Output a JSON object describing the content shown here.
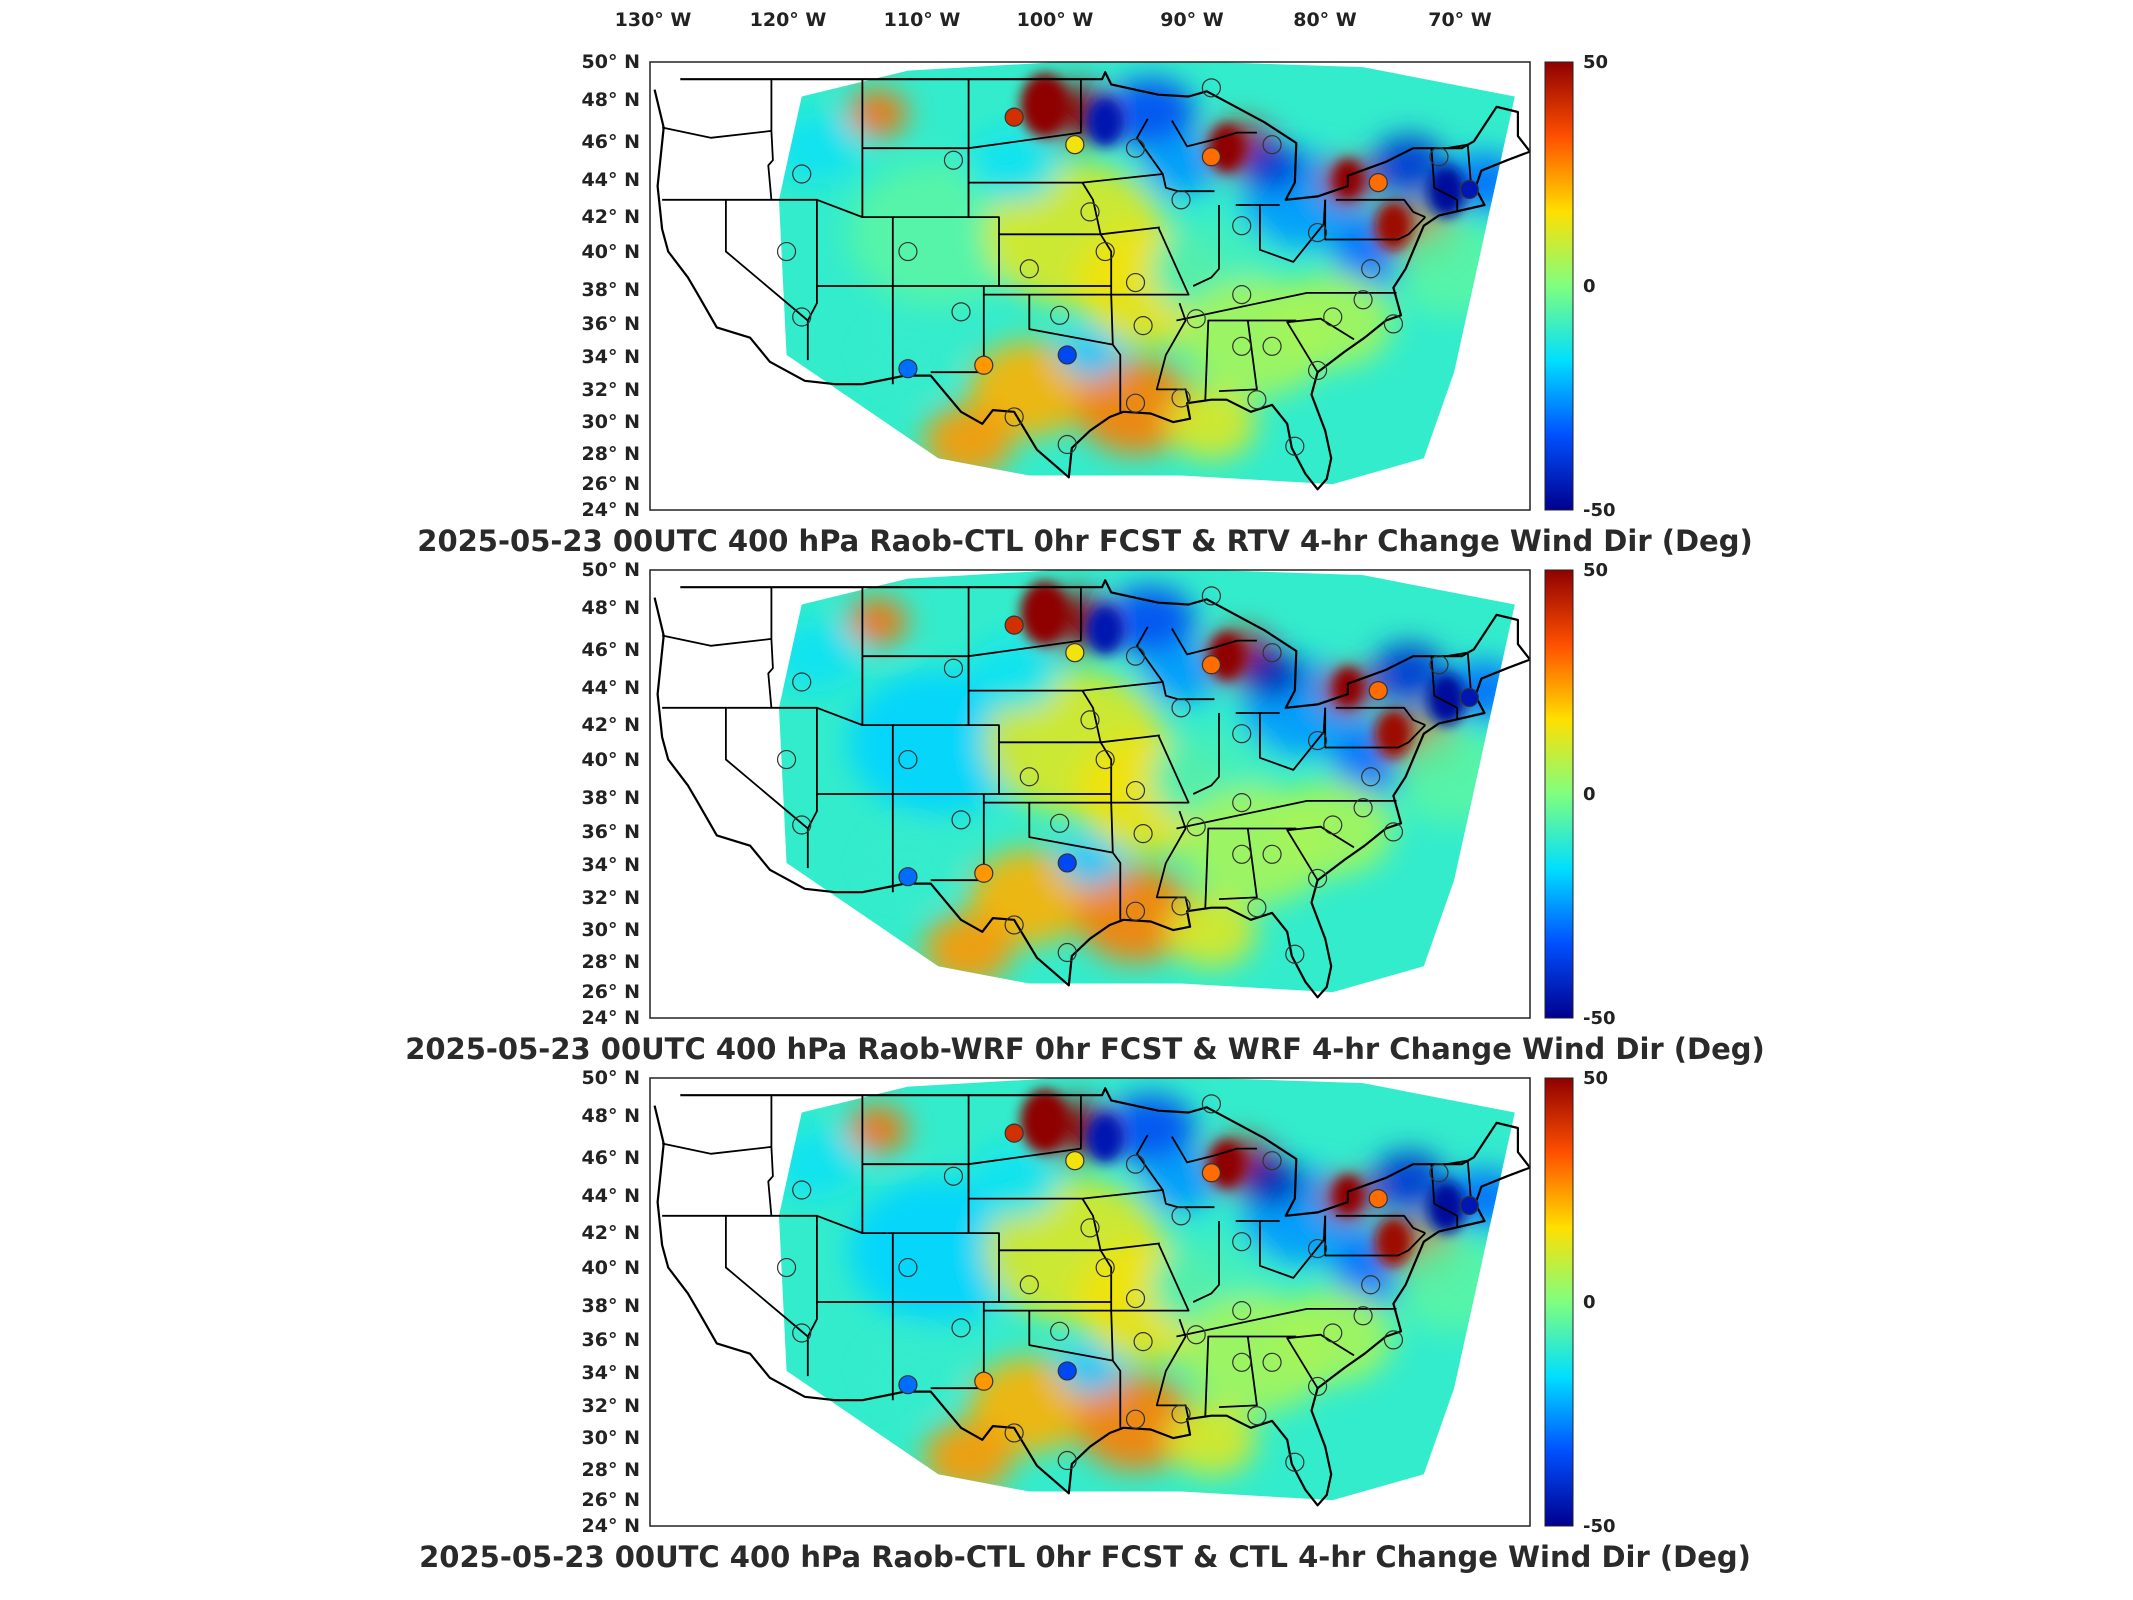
{
  "figure": {
    "lon_labels": [
      "130° W",
      "120° W",
      "110° W",
      "100° W",
      "90° W",
      "80° W",
      "70° W"
    ],
    "lat_labels": [
      "50° N",
      "48° N",
      "46° N",
      "44° N",
      "42° N",
      "40° N",
      "38° N",
      "36° N",
      "34° N",
      "32° N",
      "30° N",
      "28° N",
      "26° N",
      "24° N"
    ],
    "colorbar": {
      "max_label": "50",
      "mid_label": "0",
      "min_label": "-50",
      "colors": [
        "#00008f",
        "#0050ff",
        "#00dfff",
        "#7fff7f",
        "#ffdf00",
        "#ff5000",
        "#8f0000"
      ]
    }
  },
  "panels": [
    {
      "title": "2025-05-23 00UTC 400 hPa Raob-CTL 0hr FCST & RTV 4-hr Change Wind Dir (Deg)"
    },
    {
      "title": "2025-05-23 00UTC 400 hPa Raob-WRF 0hr FCST & WRF 4-hr Change Wind Dir (Deg)"
    },
    {
      "title": "2025-05-23 00UTC 400 hPa Raob-CTL 0hr FCST & CTL 4-hr Change Wind Dir (Deg)"
    }
  ],
  "stations": [
    {
      "lon": -105,
      "lat": 44.3,
      "v": 0
    },
    {
      "lon": -115,
      "lat": 43.5,
      "v": 0
    },
    {
      "lon": -101,
      "lat": 46.8,
      "v": 40
    },
    {
      "lon": -97,
      "lat": 45.2,
      "v": 15
    },
    {
      "lon": -88,
      "lat": 48.5,
      "v": 0
    },
    {
      "lon": -93,
      "lat": 45,
      "v": 0
    },
    {
      "lon": -88,
      "lat": 44.5,
      "v": 30
    },
    {
      "lon": -84,
      "lat": 45.2,
      "v": 0
    },
    {
      "lon": -77,
      "lat": 43,
      "v": 30
    },
    {
      "lon": -71,
      "lat": 42.6,
      "v": -45
    },
    {
      "lon": -73,
      "lat": 44.5,
      "v": 0
    },
    {
      "lon": -90,
      "lat": 42,
      "v": 0
    },
    {
      "lon": -86,
      "lat": 40.5,
      "v": 0
    },
    {
      "lon": -81,
      "lat": 40.1,
      "v": 0
    },
    {
      "lon": -96,
      "lat": 41.3,
      "v": 0
    },
    {
      "lon": -100,
      "lat": 38,
      "v": 0
    },
    {
      "lon": -95,
      "lat": 39,
      "v": 0
    },
    {
      "lon": -93,
      "lat": 37.2,
      "v": 0
    },
    {
      "lon": -104.5,
      "lat": 35.5,
      "v": 0
    },
    {
      "lon": -98,
      "lat": 35.3,
      "v": 0
    },
    {
      "lon": -89,
      "lat": 35.1,
      "v": 0
    },
    {
      "lon": -86,
      "lat": 36.5,
      "v": 0
    },
    {
      "lon": -92.5,
      "lat": 34.7,
      "v": 0
    },
    {
      "lon": -97.5,
      "lat": 33,
      "v": -35
    },
    {
      "lon": -103,
      "lat": 32.4,
      "v": 25
    },
    {
      "lon": -108,
      "lat": 32.2,
      "v": -30
    },
    {
      "lon": -115,
      "lat": 35.2,
      "v": 0
    },
    {
      "lon": -93,
      "lat": 30.2,
      "v": 0
    },
    {
      "lon": -90,
      "lat": 30.5,
      "v": 0
    },
    {
      "lon": -86,
      "lat": 33.5,
      "v": 0
    },
    {
      "lon": -84,
      "lat": 33.5,
      "v": 0
    },
    {
      "lon": -81,
      "lat": 32.1,
      "v": 0
    },
    {
      "lon": -80,
      "lat": 35.2,
      "v": 0
    },
    {
      "lon": -78,
      "lat": 36.2,
      "v": 0
    },
    {
      "lon": -77.5,
      "lat": 38,
      "v": 0
    },
    {
      "lon": -85,
      "lat": 30.4,
      "v": 0
    },
    {
      "lon": -82.5,
      "lat": 27.7,
      "v": 0
    },
    {
      "lon": -97.5,
      "lat": 27.8,
      "v": 0
    },
    {
      "lon": -101,
      "lat": 29.4,
      "v": 0
    },
    {
      "lon": -108,
      "lat": 39,
      "v": 0
    },
    {
      "lon": -116,
      "lat": 39,
      "v": 0
    },
    {
      "lon": -76,
      "lat": 34.8,
      "v": 0
    }
  ]
}
